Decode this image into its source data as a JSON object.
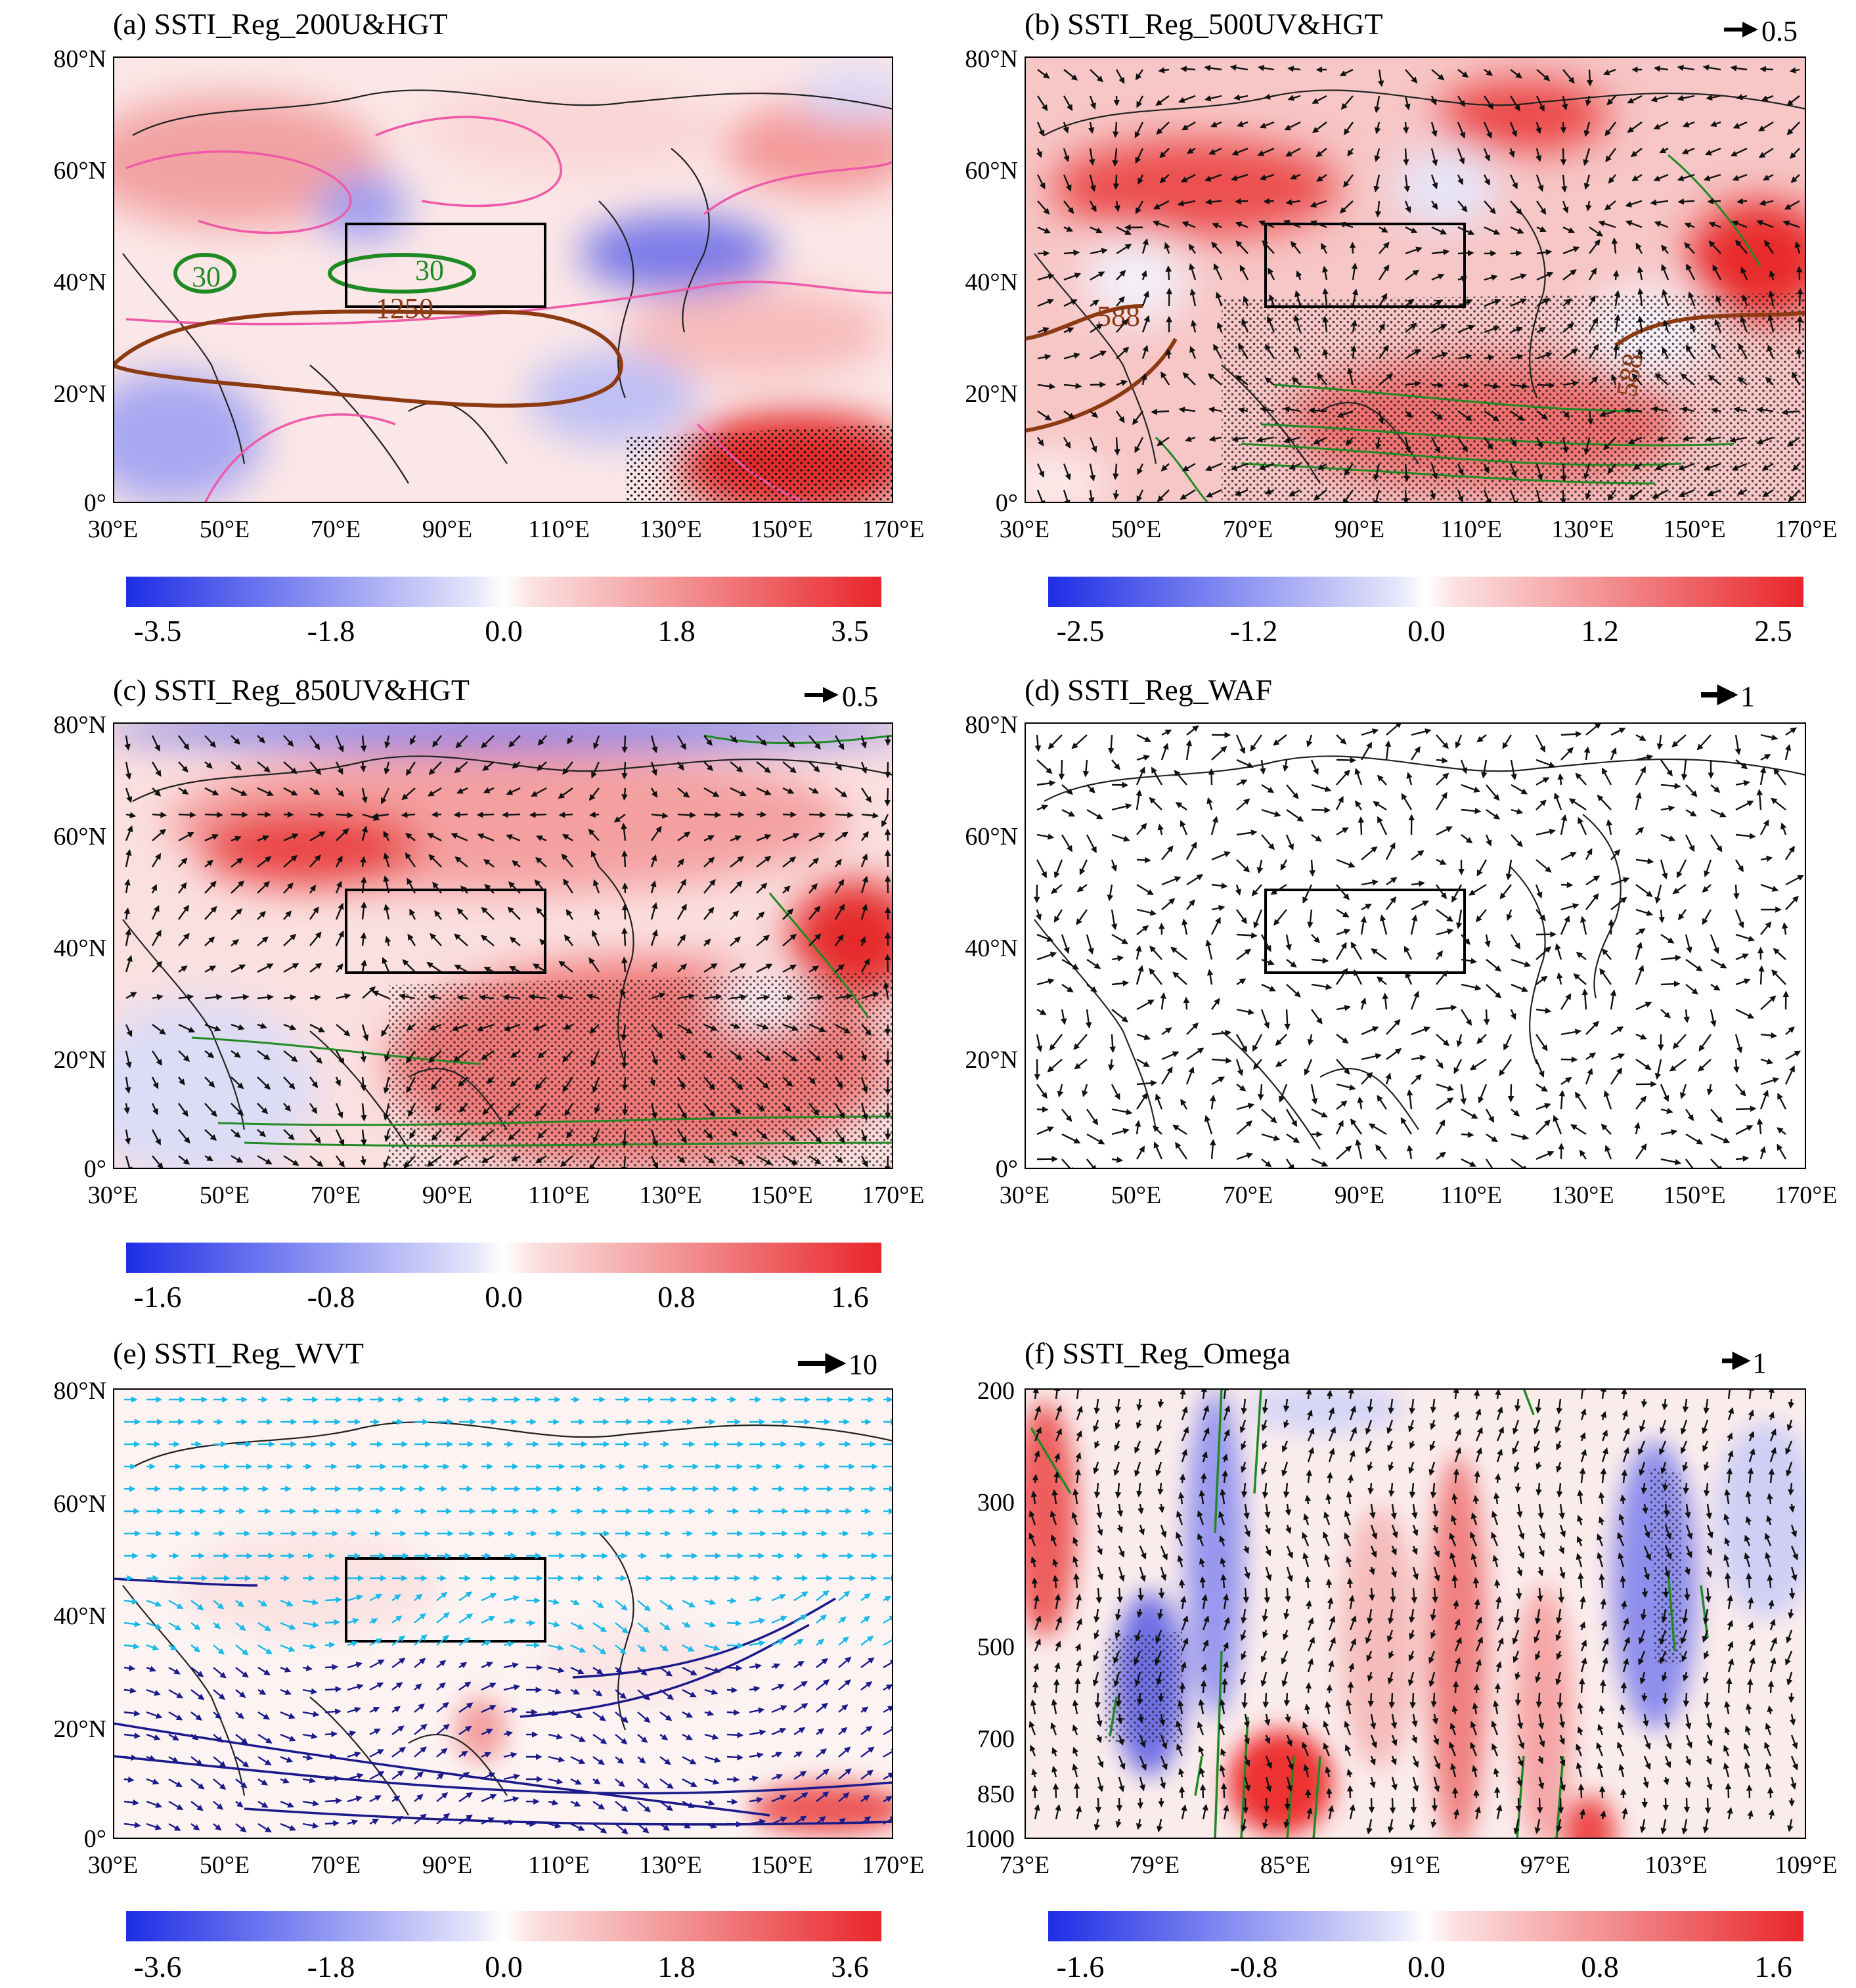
{
  "figure": {
    "panels": [
      {
        "id": "a",
        "title": "(a) SSTI_Reg_200U&HGT",
        "lon_ticks": [
          "30°E",
          "50°E",
          "70°E",
          "90°E",
          "110°E",
          "130°E",
          "150°E",
          "170°E"
        ],
        "lat_ticks": [
          "0°",
          "20°N",
          "40°N",
          "60°N",
          "80°N"
        ],
        "contour_labels": [
          "30",
          "30",
          "1250"
        ],
        "ref_vector": "",
        "colorbar": {
          "labels": [
            "-3.5",
            "-1.8",
            "0.0",
            "1.8",
            "3.5"
          ],
          "range": [
            -3.5,
            3.5
          ]
        }
      },
      {
        "id": "b",
        "title": "(b) SSTI_Reg_500UV&HGT",
        "lon_ticks": [
          "30°E",
          "50°E",
          "70°E",
          "90°E",
          "110°E",
          "130°E",
          "150°E",
          "170°E"
        ],
        "lat_ticks": [
          "0°",
          "20°N",
          "40°N",
          "60°N",
          "80°N"
        ],
        "contour_labels": [
          "588",
          "588"
        ],
        "ref_vector": "0.5",
        "colorbar": {
          "labels": [
            "-2.5",
            "-1.2",
            "0.0",
            "1.2",
            "2.5"
          ],
          "range": [
            -2.5,
            2.5
          ]
        }
      },
      {
        "id": "c",
        "title": "(c) SSTI_Reg_850UV&HGT",
        "lon_ticks": [
          "30°E",
          "50°E",
          "70°E",
          "90°E",
          "110°E",
          "130°E",
          "150°E",
          "170°E"
        ],
        "lat_ticks": [
          "0°",
          "20°N",
          "40°N",
          "60°N",
          "80°N"
        ],
        "contour_labels": [],
        "ref_vector": "0.5",
        "colorbar": {
          "labels": [
            "-1.6",
            "-0.8",
            "0.0",
            "0.8",
            "1.6"
          ],
          "range": [
            -1.6,
            1.6
          ]
        }
      },
      {
        "id": "d",
        "title": "(d) SSTI_Reg_WAF",
        "lon_ticks": [
          "30°E",
          "50°E",
          "70°E",
          "90°E",
          "110°E",
          "130°E",
          "150°E",
          "170°E"
        ],
        "lat_ticks": [
          "0°",
          "20°N",
          "40°N",
          "60°N",
          "80°N"
        ],
        "contour_labels": [],
        "ref_vector": "1",
        "colorbar": null
      },
      {
        "id": "e",
        "title": "(e) SSTI_Reg_WVT",
        "lon_ticks": [
          "30°E",
          "50°E",
          "70°E",
          "90°E",
          "110°E",
          "130°E",
          "150°E",
          "170°E"
        ],
        "lat_ticks": [
          "0°",
          "20°N",
          "40°N",
          "60°N",
          "80°N"
        ],
        "contour_labels": [],
        "ref_vector": "10",
        "colorbar": {
          "labels": [
            "-3.6",
            "-1.8",
            "0.0",
            "1.8",
            "3.6"
          ],
          "range": [
            -3.6,
            3.6
          ]
        }
      },
      {
        "id": "f",
        "title": "(f) SSTI_Reg_Omega",
        "lon_ticks": [
          "73°E",
          "79°E",
          "85°E",
          "91°E",
          "97°E",
          "103°E",
          "109°E"
        ],
        "lat_ticks": [
          "1000",
          "850",
          "700",
          "500",
          "300",
          "200"
        ],
        "contour_labels": [],
        "ref_vector": "1",
        "colorbar": {
          "labels": [
            "-1.6",
            "-0.8",
            "0.0",
            "0.8",
            "1.6"
          ],
          "range": [
            -1.6,
            1.6
          ]
        }
      }
    ]
  },
  "chart_data": [
    {
      "type": "heatmap",
      "title": "(a) SSTI_Reg_200U&HGT",
      "xlabel": "",
      "ylabel": "",
      "xlim": [
        30,
        170
      ],
      "ylim": [
        0,
        80
      ],
      "colorbar_range": [
        -3.5,
        3.5
      ],
      "contour_labels": [
        "30",
        "30",
        "1250"
      ],
      "box_region": {
        "lon": [
          73,
          110
        ],
        "lat": [
          35,
          50
        ]
      }
    },
    {
      "type": "heatmap",
      "title": "(b) SSTI_Reg_500UV&HGT",
      "xlabel": "",
      "ylabel": "",
      "xlim": [
        30,
        170
      ],
      "ylim": [
        0,
        80
      ],
      "colorbar_range": [
        -2.5,
        2.5
      ],
      "contour_labels": [
        "588",
        "588"
      ],
      "reference_vector": 0.5,
      "box_region": {
        "lon": [
          73,
          110
        ],
        "lat": [
          35,
          50
        ]
      }
    },
    {
      "type": "heatmap",
      "title": "(c) SSTI_Reg_850UV&HGT",
      "xlabel": "",
      "ylabel": "",
      "xlim": [
        30,
        170
      ],
      "ylim": [
        0,
        80
      ],
      "colorbar_range": [
        -1.6,
        1.6
      ],
      "reference_vector": 0.5,
      "box_region": {
        "lon": [
          73,
          110
        ],
        "lat": [
          35,
          50
        ]
      }
    },
    {
      "type": "heatmap",
      "title": "(d) SSTI_Reg_WAF",
      "xlabel": "",
      "ylabel": "",
      "xlim": [
        30,
        170
      ],
      "ylim": [
        0,
        80
      ],
      "reference_vector": 1,
      "box_region": {
        "lon": [
          73,
          110
        ],
        "lat": [
          35,
          50
        ]
      }
    },
    {
      "type": "heatmap",
      "title": "(e) SSTI_Reg_WVT",
      "xlabel": "",
      "ylabel": "",
      "xlim": [
        30,
        170
      ],
      "ylim": [
        0,
        80
      ],
      "colorbar_range": [
        -3.6,
        3.6
      ],
      "reference_vector": 10,
      "box_region": {
        "lon": [
          73,
          110
        ],
        "lat": [
          35,
          50
        ]
      }
    },
    {
      "type": "heatmap",
      "title": "(f) SSTI_Reg_Omega",
      "xlabel": "",
      "ylabel": "",
      "xlim": [
        73,
        109
      ],
      "ylim": [
        1000,
        200
      ],
      "y_levels": [
        1000,
        850,
        700,
        500,
        300,
        200
      ],
      "colorbar_range": [
        -1.6,
        1.6
      ],
      "reference_vector": 1
    }
  ],
  "colors": {
    "positive": "#e8262a",
    "negative": "#1e2ee6",
    "zero": "#ffffff",
    "u_contour": "#ee5aa8",
    "jet_contour": "#1f8a24",
    "hgt_contour": "#8b3a12",
    "sig_vector": "#1f8a24",
    "wvt_light": "#19b9e8",
    "wvt_dark": "#1a1a8a"
  }
}
